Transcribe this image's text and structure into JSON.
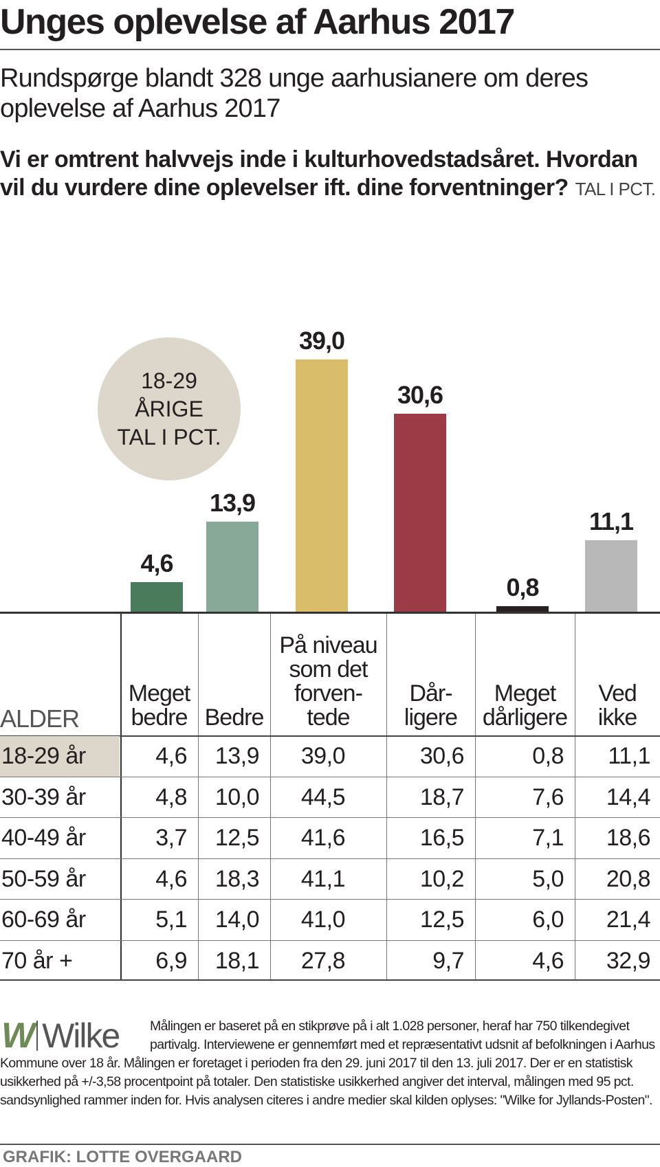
{
  "title": "Unges oplevelse af Aarhus 2017",
  "subtitle": "Rundspørge blandt 328 unge aarhusianere om deres oplevelse af Aarhus 2017",
  "question": "Vi er omtrent halvvejs inde i kulturhovedstadsåret. Hvordan vil du vurdere dine oplevelser ift. dine forventninger?",
  "unit": "TAL I PCT.",
  "badge": {
    "line1": "18-29",
    "line2": "ÅRIGE",
    "line3": "TAL I PCT."
  },
  "chart_data": {
    "type": "bar",
    "title": "18-29 ÅRIGE TAL I PCT.",
    "categories": [
      "Meget bedre",
      "Bedre",
      "På niveau som det forventede",
      "Dårligere",
      "Meget dårligere",
      "Ved ikke"
    ],
    "values": [
      4.6,
      13.9,
      39.0,
      30.6,
      0.8,
      11.1
    ],
    "labels": [
      "4,6",
      "13,9",
      "39,0",
      "30,6",
      "0,8",
      "11,1"
    ],
    "colors": [
      "#4a7c5c",
      "#88a898",
      "#d9bd6a",
      "#9c3a45",
      "#2a2020",
      "#b8b8b8"
    ],
    "ylim": [
      0,
      39
    ]
  },
  "table": {
    "row_header": "ALDER",
    "headers": [
      "Meget\nbedre",
      "Bedre",
      "På niveau\nsom det\nforven-\ntede",
      "Dår-\nligere",
      "Meget\ndårligere",
      "Ved\nikke"
    ],
    "rows": [
      {
        "age": "18-29 år",
        "values": [
          "4,6",
          "13,9",
          "39,0",
          "30,6",
          "0,8",
          "11,1"
        ]
      },
      {
        "age": "30-39 år",
        "values": [
          "4,8",
          "10,0",
          "44,5",
          "18,7",
          "7,6",
          "14,4"
        ]
      },
      {
        "age": "40-49 år",
        "values": [
          "3,7",
          "12,5",
          "41,6",
          "16,5",
          "7,1",
          "18,6"
        ]
      },
      {
        "age": "50-59 år",
        "values": [
          "4,6",
          "18,3",
          "41,1",
          "10,2",
          "5,0",
          "20,8"
        ]
      },
      {
        "age": "60-69 år",
        "values": [
          "5,1",
          "14,0",
          "41,0",
          "12,5",
          "6,0",
          "21,4"
        ]
      },
      {
        "age": "70 år +",
        "values": [
          "6,9",
          "18,1",
          "27,8",
          "9,7",
          "4,6",
          "32,9"
        ]
      }
    ]
  },
  "logo": {
    "mark": "W",
    "name": "Wilke"
  },
  "note": "Målingen er baseret på en stikprøve på i alt 1.028 personer, heraf har 750 tilkendegivet partivalg. Interviewene er gennemført med et repræsentativt udsnit af befolkningen i Aarhus Kommune over 18 år. Målingen er foretaget i perioden fra den 29. juni 2017 til den 13. juli 2017. Der er en statistisk usikkerhed på +/-3,58 procentpoint på totaler. Den statistiske usikkerhed angiver det interval, målingen med 95 pct. sandsynlighed rammer inden for. Hvis analysen citeres i andre medier skal kilden oplyses: \"Wilke for Jyllands-Posten\".",
  "credit": "GRAFIK: LOTTE OVERGAARD"
}
